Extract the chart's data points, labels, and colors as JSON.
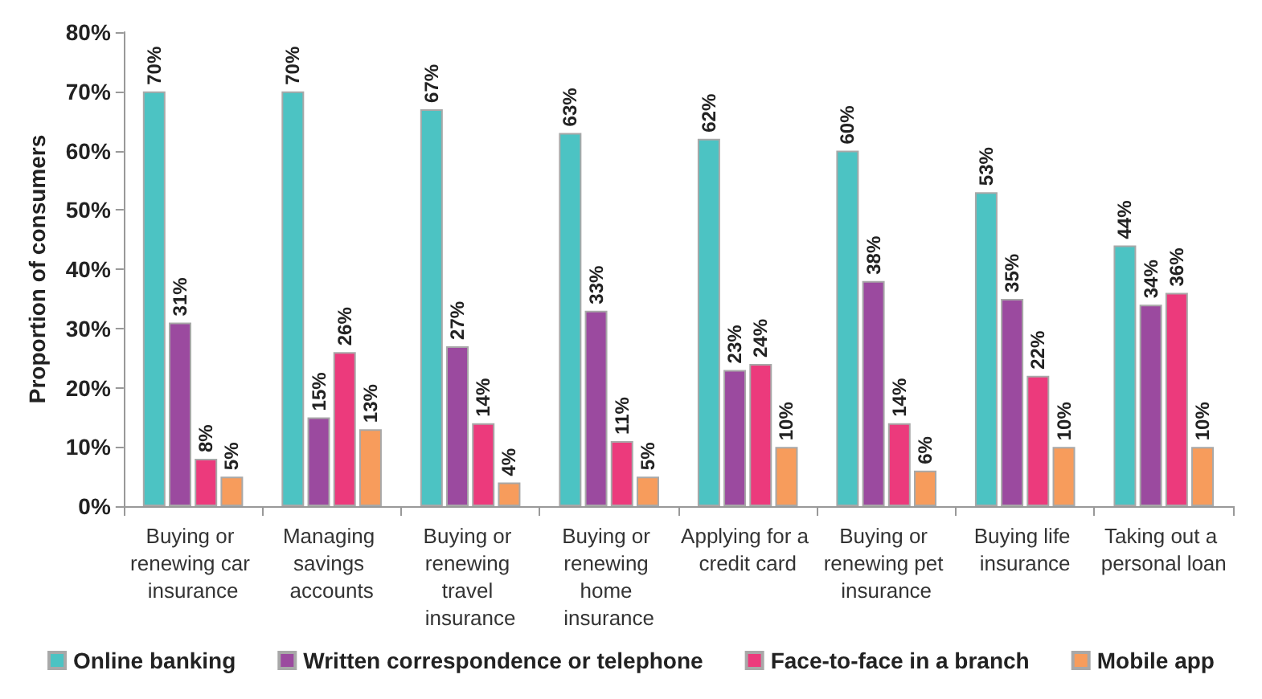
{
  "chart_data": {
    "type": "bar",
    "ylabel": "Proportion of consumers",
    "categories": [
      "Buying or renewing car insurance",
      "Managing savings accounts",
      "Buying or renewing travel insurance",
      "Buying or renewing home insurance",
      "Applying for a credit card",
      "Buying or renewing pet insurance",
      "Buying life insurance",
      "Taking out a personal loan"
    ],
    "series": [
      {
        "name": "Online banking",
        "color": "#4cc3c3",
        "values": [
          70,
          70,
          67,
          63,
          62,
          60,
          53,
          44
        ],
        "value_labels": [
          "70%",
          "70%",
          "67%",
          "63%",
          "62%",
          "60%",
          "53%",
          "44%"
        ]
      },
      {
        "name": "Written correspondence or telephone",
        "color": "#9b4a9f",
        "values": [
          31,
          15,
          27,
          33,
          23,
          38,
          35,
          34
        ],
        "value_labels": [
          "31%",
          "15%",
          "27%",
          "33%",
          "23%",
          "38%",
          "35%",
          "34%"
        ]
      },
      {
        "name": "Face-to-face in a branch",
        "color": "#ec3a7c",
        "values": [
          8,
          26,
          14,
          11,
          24,
          14,
          22,
          36
        ],
        "value_labels": [
          "8%",
          "26%",
          "14%",
          "11%",
          "24%",
          "14%",
          "22%",
          "36%"
        ]
      },
      {
        "name": "Mobile app",
        "color": "#f79c5c",
        "values": [
          5,
          13,
          4,
          5,
          10,
          6,
          10,
          10
        ],
        "value_labels": [
          "5%",
          "13%",
          "4%",
          "5%",
          "10%",
          "6%",
          "10%",
          "10%"
        ]
      }
    ],
    "ylim": [
      0,
      80
    ],
    "yticks": [
      {
        "value": 0,
        "label": "0%"
      },
      {
        "value": 10,
        "label": "10%"
      },
      {
        "value": 20,
        "label": "20%"
      },
      {
        "value": 30,
        "label": "30%"
      },
      {
        "value": 40,
        "label": "40%"
      },
      {
        "value": 50,
        "label": "50%"
      },
      {
        "value": 60,
        "label": "60%"
      },
      {
        "value": 70,
        "label": "70%"
      },
      {
        "value": 80,
        "label": "80%"
      }
    ],
    "grid": false,
    "legend": "bottom"
  }
}
